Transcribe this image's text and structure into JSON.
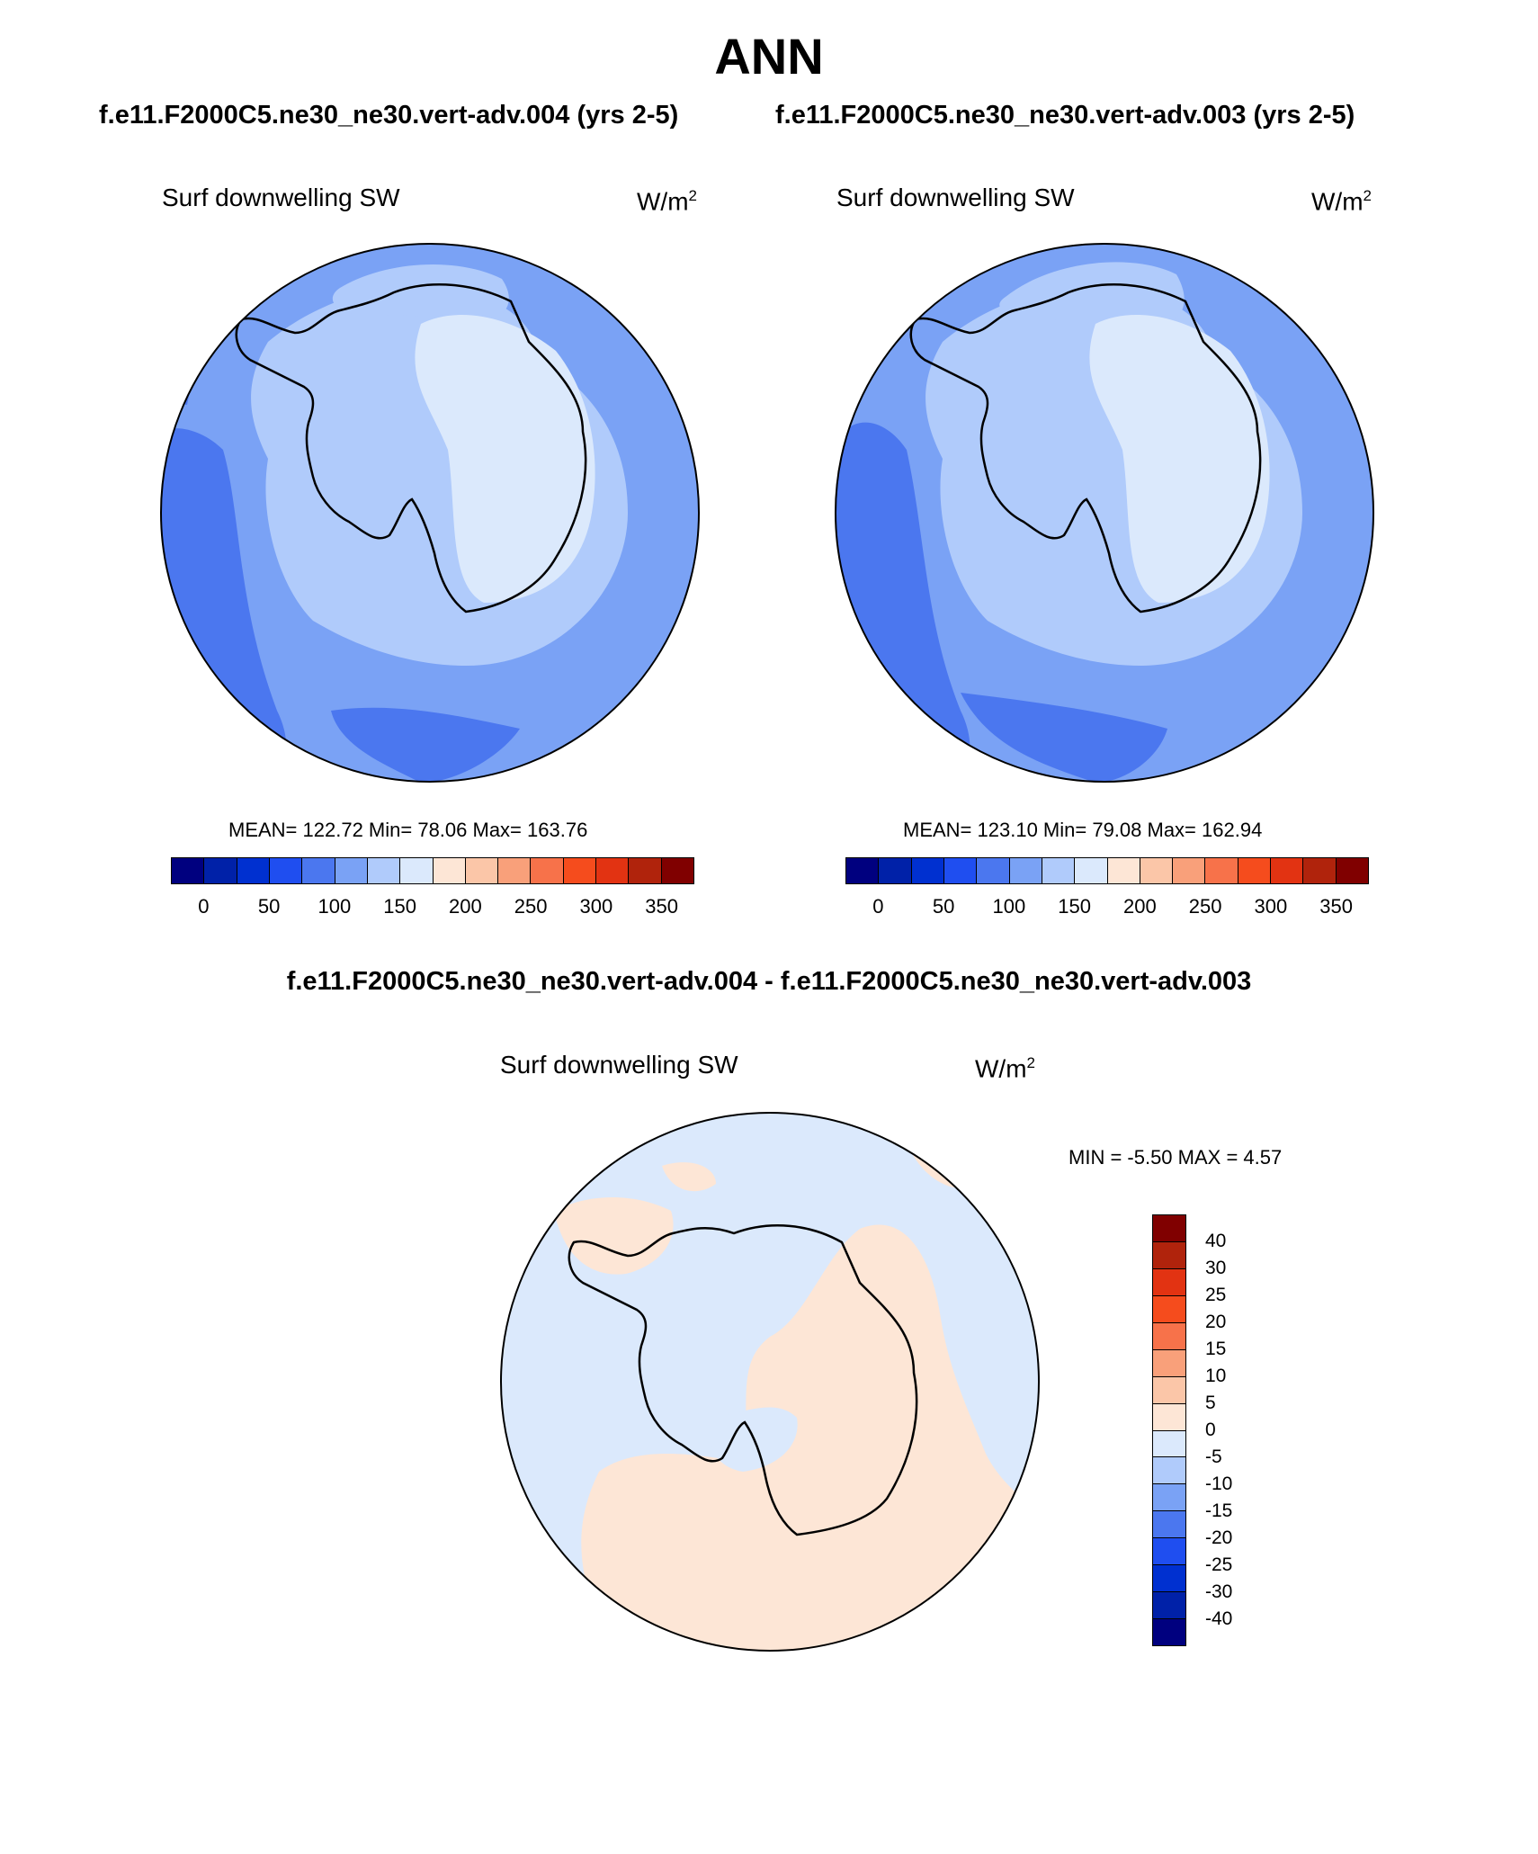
{
  "title": "ANN",
  "case_titles": {
    "left": "f.e11.F2000C5.ne30_ne30.vert-adv.004 (yrs 2-5)",
    "right": "f.e11.F2000C5.ne30_ne30.vert-adv.003 (yrs 2-5)"
  },
  "diff_title": "f.e11.F2000C5.ne30_ne30.vert-adv.004 - f.e11.F2000C5.ne30_ne30.vert-adv.003",
  "panels": [
    {
      "variable": "Surf downwelling SW",
      "units_base": "W/m",
      "units_exp": "2",
      "stats": "MEAN= 122.72  Min=  78.06  Max= 163.76"
    },
    {
      "variable": "Surf downwelling SW",
      "units_base": "W/m",
      "units_exp": "2",
      "stats": "MEAN= 123.10  Min=  79.08  Max= 162.94"
    }
  ],
  "diff_panel": {
    "variable": "Surf downwelling SW",
    "units_base": "W/m",
    "units_exp": "2",
    "minmax": "MIN =  -5.50 MAX =   4.57"
  },
  "colorbar_horizontal": {
    "colors": [
      "#00007f",
      "#0021a8",
      "#0030d0",
      "#1f4ef0",
      "#4b77ef",
      "#7aa2f5",
      "#b0cbfb",
      "#dbe9fc",
      "#fde6d6",
      "#fbc6a8",
      "#f9a07a",
      "#f7724a",
      "#f54c1d",
      "#e23312",
      "#b0230c",
      "#800000"
    ],
    "ticks": [
      "0",
      "50",
      "100",
      "150",
      "200",
      "250",
      "300",
      "350"
    ]
  },
  "colorbar_vertical": {
    "colors_top_to_bottom": [
      "#800000",
      "#b0230c",
      "#e23312",
      "#f54c1d",
      "#f7724a",
      "#f9a07a",
      "#fbc6a8",
      "#fde6d6",
      "#dbe9fc",
      "#b0cbfb",
      "#7aa2f5",
      "#4b77ef",
      "#1f4ef0",
      "#0030d0",
      "#0021a8",
      "#00007f"
    ],
    "ticks_top_to_bottom": [
      "40",
      "30",
      "25",
      "20",
      "15",
      "10",
      "5",
      "0",
      "-5",
      "-10",
      "-15",
      "-20",
      "-25",
      "-30",
      "-40"
    ]
  },
  "colors": {
    "field_ocean": "#7aa2f5",
    "field_low": "#4b77ef",
    "field_mid": "#b0cbfb",
    "field_high": "#dbe9fc",
    "diff_negative": "#dbe9fc",
    "diff_positive": "#fde6d6"
  }
}
